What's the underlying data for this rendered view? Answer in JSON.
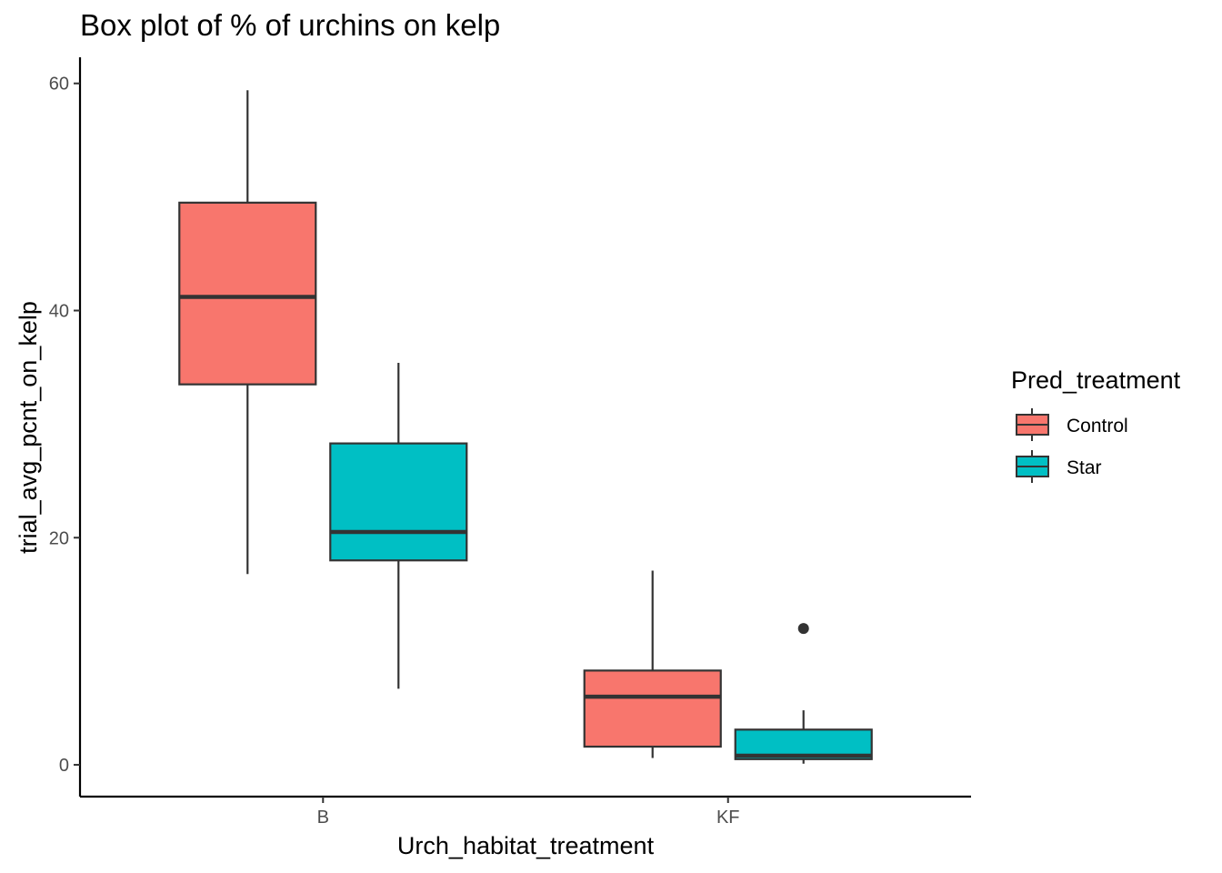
{
  "chart_data": {
    "type": "box",
    "title": "Box plot of % of urchins on kelp",
    "xlabel": "Urch_habitat_treatment",
    "ylabel": "trial_avg_pcnt_on_kelp",
    "categories": [
      "B",
      "KF"
    ],
    "ylim": [
      -2.8,
      62.3
    ],
    "yticks": [
      0,
      20,
      40,
      60
    ],
    "grid": false,
    "legend": {
      "title": "Pred_treatment",
      "position": "right",
      "entries": [
        "Control",
        "Star"
      ]
    },
    "series": [
      {
        "name": "Control",
        "color": "#F8766D",
        "boxes": [
          {
            "category": "B",
            "min": 16.8,
            "q1": 33.5,
            "median": 41.2,
            "q3": 49.5,
            "max": 59.4,
            "outliers": []
          },
          {
            "category": "KF",
            "min": 0.6,
            "q1": 1.6,
            "median": 6.0,
            "q3": 8.3,
            "max": 17.1,
            "outliers": []
          }
        ]
      },
      {
        "name": "Star",
        "color": "#00BFC4",
        "boxes": [
          {
            "category": "B",
            "min": 6.7,
            "q1": 18.0,
            "median": 20.5,
            "q3": 28.3,
            "max": 35.4,
            "outliers": []
          },
          {
            "category": "KF",
            "min": 0.1,
            "q1": 0.5,
            "median": 0.8,
            "q3": 3.1,
            "max": 4.8,
            "outliers": [
              12.0
            ]
          }
        ]
      }
    ]
  }
}
